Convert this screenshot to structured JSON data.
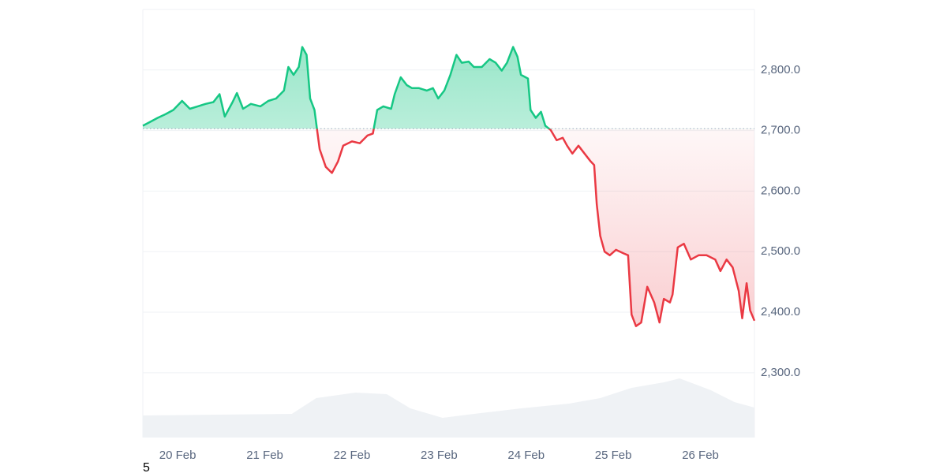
{
  "chart_data": {
    "type": "line",
    "x": [
      19.6,
      19.68,
      19.77,
      19.86,
      19.95,
      20.05,
      20.14,
      20.23,
      20.32,
      20.41,
      20.48,
      20.54,
      20.63,
      20.68,
      20.75,
      20.84,
      20.95,
      21.04,
      21.13,
      21.22,
      21.27,
      21.33,
      21.39,
      21.43,
      21.48,
      21.52,
      21.57,
      21.6,
      21.63,
      21.7,
      21.77,
      21.84,
      21.9,
      22.0,
      22.09,
      22.18,
      22.24,
      22.29,
      22.36,
      22.45,
      22.49,
      22.56,
      22.63,
      22.69,
      22.77,
      22.86,
      22.93,
      22.99,
      23.06,
      23.13,
      23.2,
      23.26,
      23.34,
      23.4,
      23.49,
      23.58,
      23.65,
      23.72,
      23.78,
      23.85,
      23.9,
      23.94,
      24.02,
      24.05,
      24.11,
      24.17,
      24.22,
      24.28,
      24.35,
      24.42,
      24.47,
      24.53,
      24.6,
      24.67,
      24.74,
      24.78,
      24.81,
      24.85,
      24.9,
      24.96,
      25.03,
      25.12,
      25.17,
      25.21,
      25.26,
      25.32,
      25.39,
      25.47,
      25.53,
      25.58,
      25.65,
      25.68,
      25.74,
      25.81,
      25.89,
      25.98,
      26.07,
      26.17,
      26.23,
      26.3,
      26.37,
      26.44,
      26.48,
      26.53,
      26.57,
      26.62
    ],
    "values": [
      2708,
      2714,
      2721,
      2727,
      2734,
      2749,
      2736,
      2740,
      2744,
      2747,
      2760,
      2723,
      2747,
      2762,
      2736,
      2744,
      2740,
      2749,
      2753,
      2766,
      2805,
      2792,
      2805,
      2838,
      2825,
      2753,
      2734,
      2701,
      2669,
      2640,
      2630,
      2649,
      2675,
      2682,
      2679,
      2692,
      2695,
      2734,
      2740,
      2736,
      2760,
      2788,
      2775,
      2770,
      2770,
      2766,
      2770,
      2753,
      2766,
      2792,
      2825,
      2812,
      2814,
      2805,
      2805,
      2818,
      2812,
      2799,
      2812,
      2838,
      2822,
      2792,
      2786,
      2734,
      2721,
      2731,
      2708,
      2701,
      2684,
      2688,
      2675,
      2662,
      2675,
      2662,
      2649,
      2643,
      2578,
      2526,
      2500,
      2494,
      2503,
      2497,
      2494,
      2396,
      2377,
      2383,
      2442,
      2416,
      2383,
      2422,
      2416,
      2429,
      2507,
      2513,
      2487,
      2494,
      2494,
      2487,
      2468,
      2487,
      2474,
      2435,
      2390,
      2448,
      2403,
      2386
    ],
    "baseline": 2703,
    "up_color": "#16c784",
    "down_color": "#ea3943",
    "volume_x": [
      19.6,
      21.31,
      21.59,
      22.04,
      22.4,
      22.67,
      23.04,
      23.4,
      23.94,
      24.49,
      24.85,
      25.21,
      25.58,
      25.76,
      26.12,
      26.39,
      26.62
    ],
    "volume_values": [
      28,
      30,
      50,
      57,
      55,
      37,
      25,
      30,
      37,
      43,
      50,
      63,
      70,
      75,
      60,
      45,
      38
    ],
    "volume_ylim": [
      0,
      100
    ],
    "volume_color": "#eff2f5",
    "xlim": [
      19.6,
      26.62
    ],
    "xticks": [
      {
        "value": 20,
        "label": "20 Feb"
      },
      {
        "value": 21,
        "label": "21 Feb"
      },
      {
        "value": 22,
        "label": "22 Feb"
      },
      {
        "value": 23,
        "label": "23 Feb"
      },
      {
        "value": 24,
        "label": "24 Feb"
      },
      {
        "value": 25,
        "label": "25 Feb"
      },
      {
        "value": 26,
        "label": "26 Feb"
      }
    ],
    "ylim": [
      2193,
      2900
    ],
    "yticks": [
      {
        "value": 2300,
        "label": "2,300.0"
      },
      {
        "value": 2400,
        "label": "2,400.0"
      },
      {
        "value": 2500,
        "label": "2,500.0"
      },
      {
        "value": 2600,
        "label": "2,600.0"
      },
      {
        "value": 2700,
        "label": "2,700.0"
      },
      {
        "value": 2800,
        "label": "2,800.0"
      }
    ],
    "grid": true,
    "footer_text": "5"
  }
}
